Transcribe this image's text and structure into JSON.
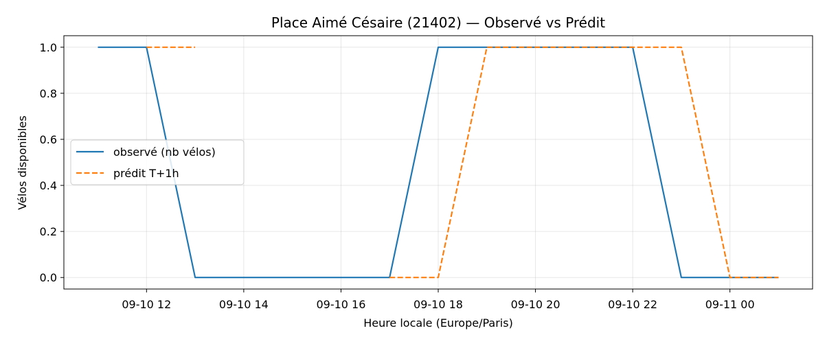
{
  "chart_data": {
    "type": "line",
    "title": "Place Aimé Césaire (21402) — Observé vs Prédit",
    "xlabel": "Heure locale (Europe/Paris)",
    "ylabel": "Vélos disponibles",
    "x_ticks": [
      "09-10 12",
      "09-10 14",
      "09-10 16",
      "09-10 18",
      "09-10 20",
      "09-10 22",
      "09-11 00"
    ],
    "x_tick_hours": [
      12,
      14,
      16,
      18,
      20,
      22,
      24
    ],
    "xlim": [
      10.3,
      25.7
    ],
    "ylim": [
      -0.05,
      1.05
    ],
    "y_ticks": [
      0.0,
      0.2,
      0.4,
      0.6,
      0.8,
      1.0
    ],
    "y_tick_labels": [
      "0.0",
      "0.2",
      "0.4",
      "0.6",
      "0.8",
      "1.0"
    ],
    "grid": true,
    "legend_position": "center-left",
    "series": [
      {
        "name": "observé (nb vélos)",
        "color": "#1f77b4",
        "style": "solid",
        "x": [
          11,
          12,
          13,
          14,
          15,
          16,
          17,
          18,
          19,
          20,
          21,
          22,
          23,
          24,
          25
        ],
        "y": [
          1,
          1,
          0,
          0,
          0,
          0,
          0,
          1,
          1,
          1,
          1,
          1,
          0,
          0,
          0
        ]
      },
      {
        "name": "prédit T+1h",
        "color": "#ff7f0e",
        "style": "dashed",
        "x": [
          12,
          13
        ],
        "y": [
          1,
          1
        ]
      },
      {
        "name": "prédit T+1h",
        "color": "#ff7f0e",
        "style": "dashed",
        "x": [
          17,
          18,
          19,
          20,
          21,
          22,
          23,
          24,
          25
        ],
        "y": [
          0,
          0,
          1,
          1,
          1,
          1,
          1,
          0,
          0
        ]
      }
    ]
  }
}
